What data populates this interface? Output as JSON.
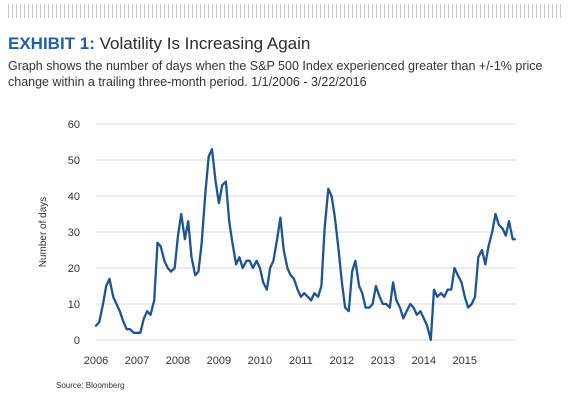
{
  "header": {
    "exhibit_label": "EXHIBIT 1:",
    "title": "Volatility Is Increasing Again",
    "subtitle": "Graph shows the number of days when the S&P 500 Index experienced greater than +/-1% price change within a trailing three-month period. 1/1/2006 - 3/22/2016"
  },
  "footer": {
    "source": "Source: Bloomberg"
  },
  "colors": {
    "line": "#1e5490",
    "title_accent": "#1f5fa8",
    "grid": "#d9d9d9"
  },
  "chart_data": {
    "type": "line",
    "title": "Volatility Is Increasing Again",
    "xlabel": "",
    "ylabel": "Number of days",
    "ylim": [
      0,
      60
    ],
    "yticks": [
      0,
      10,
      20,
      30,
      40,
      50,
      60
    ],
    "xlim": [
      2006,
      2016.25
    ],
    "xticks": [
      2006,
      2007,
      2008,
      2009,
      2010,
      2011,
      2012,
      2013,
      2014,
      2015
    ],
    "grid": "horizontal",
    "series": [
      {
        "x": [
          2006.0,
          2006.08,
          2006.17,
          2006.25,
          2006.33,
          2006.42,
          2006.5,
          2006.58,
          2006.67,
          2006.75,
          2006.83,
          2006.92,
          2007.0,
          2007.08,
          2007.17,
          2007.25,
          2007.33,
          2007.42,
          2007.5,
          2007.58,
          2007.67,
          2007.75,
          2007.83,
          2007.92,
          2008.0,
          2008.08,
          2008.17,
          2008.25,
          2008.33,
          2008.42,
          2008.5,
          2008.58,
          2008.67,
          2008.75,
          2008.83,
          2008.92,
          2009.0,
          2009.08,
          2009.17,
          2009.25,
          2009.33,
          2009.42,
          2009.5,
          2009.58,
          2009.67,
          2009.75,
          2009.83,
          2009.92,
          2010.0,
          2010.08,
          2010.17,
          2010.25,
          2010.33,
          2010.42,
          2010.5,
          2010.58,
          2010.67,
          2010.75,
          2010.83,
          2010.92,
          2011.0,
          2011.08,
          2011.17,
          2011.25,
          2011.33,
          2011.42,
          2011.5,
          2011.58,
          2011.67,
          2011.75,
          2011.83,
          2011.92,
          2012.0,
          2012.08,
          2012.17,
          2012.25,
          2012.33,
          2012.42,
          2012.5,
          2012.58,
          2012.67,
          2012.75,
          2012.83,
          2012.92,
          2013.0,
          2013.08,
          2013.17,
          2013.25,
          2013.33,
          2013.42,
          2013.5,
          2013.58,
          2013.67,
          2013.75,
          2013.83,
          2013.92,
          2014.0,
          2014.08,
          2014.17,
          2014.25,
          2014.33,
          2014.42,
          2014.5,
          2014.58,
          2014.67,
          2014.75,
          2014.83,
          2014.92,
          2015.0,
          2015.08,
          2015.17,
          2015.25,
          2015.33,
          2015.42,
          2015.5,
          2015.58,
          2015.67,
          2015.75,
          2015.83,
          2015.92,
          2016.0,
          2016.08,
          2016.17,
          2016.22
        ],
        "values": [
          4,
          5,
          10,
          15,
          17,
          12,
          10,
          8,
          5,
          3,
          3,
          2,
          2,
          2,
          6,
          8,
          7,
          11,
          27,
          26,
          22,
          20,
          19,
          20,
          29,
          35,
          28,
          33,
          23,
          18,
          19,
          27,
          41,
          51,
          53,
          44,
          38,
          43,
          44,
          33,
          27,
          21,
          23,
          20,
          22,
          22,
          20,
          22,
          20,
          16,
          14,
          20,
          22,
          28,
          34,
          25,
          20,
          18,
          17,
          14,
          12,
          13,
          12,
          11,
          13,
          12,
          15,
          31,
          42,
          40,
          34,
          25,
          16,
          9,
          8,
          19,
          22,
          15,
          13,
          9,
          9,
          10,
          15,
          12,
          10,
          10,
          9,
          16,
          11,
          9,
          6,
          8,
          10,
          9,
          7,
          8,
          6,
          4,
          0,
          14,
          12,
          13,
          12,
          14,
          14,
          20,
          18,
          16,
          12,
          9,
          10,
          12,
          23,
          25,
          21,
          26,
          30,
          35,
          32,
          31,
          29,
          33,
          28,
          28
        ]
      }
    ]
  }
}
